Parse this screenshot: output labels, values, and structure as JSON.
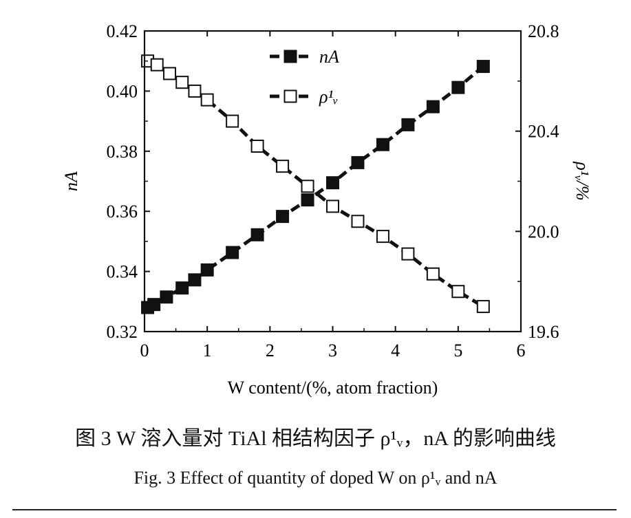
{
  "caption": {
    "cn": "图 3   W 溶入量对 TiAl 相结构因子 ρ¹ᵥ，nA 的影响曲线",
    "en": "Fig. 3    Effect of quantity of doped W on ρ¹ᵥ and nA"
  },
  "chart_data": {
    "type": "line",
    "xlabel": "W content/(%, atom fraction)",
    "ylabel_left": "nA",
    "ylabel_right": "ρ¹ᵥ/%",
    "xlim": [
      0,
      6
    ],
    "ylim_left": [
      0.32,
      0.42
    ],
    "ylim_right": [
      19.6,
      20.8
    ],
    "x_ticks": [
      "0",
      "1",
      "2",
      "3",
      "4",
      "5",
      "6"
    ],
    "y_left_ticks": [
      "0.32",
      "0.34",
      "0.36",
      "0.38",
      "0.40",
      "0.42"
    ],
    "y_right_ticks": [
      "19.6",
      "20.0",
      "20.4",
      "20.8"
    ],
    "legend_position": "top-center",
    "series": [
      {
        "name": "nA",
        "axis": "left",
        "marker": "filled-square",
        "color": "#111111",
        "x": [
          0.05,
          0.15,
          0.35,
          0.6,
          0.8,
          1.0,
          1.4,
          1.8,
          2.2,
          2.6,
          3.0,
          3.4,
          3.8,
          4.2,
          4.6,
          5.0,
          5.4
        ],
        "y": [
          0.328,
          0.329,
          0.3315,
          0.3345,
          0.3372,
          0.3405,
          0.3463,
          0.3522,
          0.3583,
          0.3638,
          0.3695,
          0.3762,
          0.3822,
          0.3888,
          0.3948,
          0.4012,
          0.4082
        ]
      },
      {
        "name": "ρ¹ᵥ",
        "axis": "right",
        "marker": "open-square",
        "color": "#111111",
        "x": [
          0.05,
          0.2,
          0.4,
          0.6,
          0.8,
          1.0,
          1.4,
          1.8,
          2.2,
          2.6,
          3.0,
          3.4,
          3.8,
          4.2,
          4.6,
          5.0,
          5.4
        ],
        "y": [
          20.68,
          20.665,
          20.63,
          20.595,
          20.56,
          20.525,
          20.44,
          20.34,
          20.26,
          20.18,
          20.1,
          20.04,
          19.98,
          19.91,
          19.83,
          19.76,
          19.7
        ]
      }
    ]
  }
}
